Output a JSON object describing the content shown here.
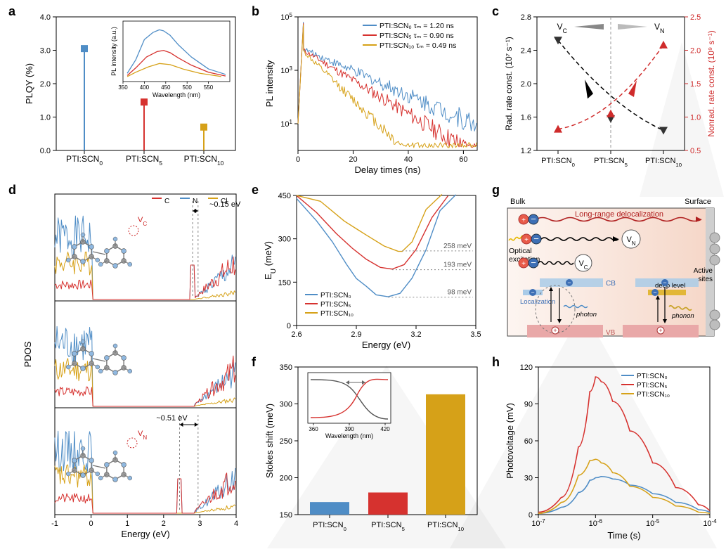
{
  "colors": {
    "scn0": "#4f8dc6",
    "scn5": "#d6322f",
    "scn10": "#d6a118",
    "black": "#000000",
    "red_axis": "#cf2b2b",
    "gray": "#7a7a7a",
    "grid": "#bbbbbb",
    "panel_g_bg_left": "#fdf5f1",
    "panel_g_bg_right": "#f5d6c7",
    "vb_fill": "#e9a8a8",
    "cb_fill": "#a9cbe8",
    "deep_fill": "#e2b738",
    "bulk_text": "#000",
    "delocal": "#b01f1f",
    "panel_g_border": "#333"
  },
  "labels": {
    "samples": [
      "PTI:SCN",
      "PTI:SCN",
      "PTI:SCN"
    ],
    "sample_subs": [
      "0",
      "5",
      "10"
    ],
    "a_ylabel": "PLQY (%)",
    "a_inset_x": "Wavelength (nm)",
    "a_inset_y": "PL intensity (a.u.)",
    "b_ylabel": "PL intensity",
    "b_xlabel": "Delay times (ns)",
    "b_legend": [
      "PTI:SCN₀  τₘ = 1.20 ns",
      "PTI:SCN₅  τₘ = 0.90 ns",
      "PTI:SCN₁₀ τₘ = 0.49 ns"
    ],
    "c_yleft": "Rad. rate const. (10⁷ s⁻¹)",
    "c_yright": "Nonrad. rate const. (10⁹ s⁻¹)",
    "c_vc": "V",
    "c_vc_sub": "C",
    "c_vn": "V",
    "c_vn_sub": "N",
    "d_ylabel": "PDOS",
    "d_xlabel": "Energy (eV)",
    "d_legend": [
      "C",
      "N",
      "Cl"
    ],
    "d_gap1": "~0.15 eV",
    "d_gap3": "~0.51 eV",
    "d_vc": "V",
    "d_vc_sub": "C",
    "d_vn": "V",
    "d_vn_sub": "N",
    "e_ylabel": "E",
    "e_ylabel_sub": "U",
    "e_yunit": " (meV)",
    "e_xlabel": "Energy (eV)",
    "e_annot1": "258 meV",
    "e_annot2": "193 meV",
    "e_annot3": "98 meV",
    "e_legend": [
      "PTI:SCN₀",
      "PTI:SCN₅",
      "PTI:SCN₁₀"
    ],
    "f_ylabel": "Stokes shift (meV)",
    "f_inset_x": "Wavelength (nm)",
    "g_bulk": "Bulk",
    "g_surface": "Surface",
    "g_delocal": "Long-range delocalization",
    "g_optical": "Optical\nexcitation",
    "g_active": "Active\nsites",
    "g_vn": "V",
    "g_vn_sub": "N",
    "g_vc": "V",
    "g_vc_sub": "C",
    "g_cb": "CB",
    "g_vb": "VB",
    "g_local": "Localization",
    "g_deep": "deep level",
    "g_photon": "photon",
    "g_phonon": "phonon",
    "h_ylabel": "Photovoltage (mV)",
    "h_xlabel": "Time (s)",
    "h_legend": [
      "PTI:SCN₀",
      "PTI:SCN₅",
      "PTI:SCN₁₀"
    ]
  },
  "panel_a": {
    "ylim": [
      0.0,
      4.0
    ],
    "ytick_step": 1.0,
    "points": [
      {
        "x": 0,
        "y": 3.05
      },
      {
        "x": 1,
        "y": 1.45
      },
      {
        "x": 2,
        "y": 0.7
      }
    ],
    "fontsize": 13,
    "inset": {
      "xlim": [
        350,
        600
      ],
      "xtick": [
        350,
        400,
        450,
        500,
        550
      ],
      "series": [
        {
          "color_key": "scn0",
          "pts": [
            [
              360,
              10
            ],
            [
              380,
              35
            ],
            [
              400,
              72
            ],
            [
              420,
              85
            ],
            [
              435,
              90
            ],
            [
              445,
              88
            ],
            [
              460,
              80
            ],
            [
              480,
              62
            ],
            [
              510,
              40
            ],
            [
              550,
              18
            ],
            [
              590,
              8
            ]
          ]
        },
        {
          "color_key": "scn5",
          "pts": [
            [
              360,
              6
            ],
            [
              380,
              20
            ],
            [
              405,
              40
            ],
            [
              430,
              50
            ],
            [
              445,
              52
            ],
            [
              460,
              48
            ],
            [
              480,
              38
            ],
            [
              510,
              25
            ],
            [
              550,
              12
            ],
            [
              590,
              5
            ]
          ]
        },
        {
          "color_key": "scn10",
          "pts": [
            [
              360,
              4
            ],
            [
              380,
              12
            ],
            [
              410,
              22
            ],
            [
              435,
              28
            ],
            [
              460,
              26
            ],
            [
              490,
              18
            ],
            [
              530,
              10
            ],
            [
              580,
              4
            ]
          ]
        }
      ]
    }
  },
  "panel_b": {
    "xlim": [
      0,
      65
    ],
    "xtick": [
      0,
      20,
      40,
      60
    ],
    "ylim_exp": [
      0,
      5
    ],
    "yticks_exp": [
      1,
      3,
      5
    ],
    "series": [
      {
        "color_key": "scn0",
        "tau": 1.2
      },
      {
        "color_key": "scn5",
        "tau": 0.9
      },
      {
        "color_key": "scn10",
        "tau": 0.49
      }
    ]
  },
  "panel_c": {
    "yleft_lim": [
      1.2,
      2.8
    ],
    "yleft_tick": 0.4,
    "yright_lim": [
      0.5,
      2.5
    ],
    "yright_tick": 0.5,
    "rad": [
      2.52,
      1.58,
      1.44
    ],
    "nonrad": [
      0.82,
      1.05,
      2.08
    ]
  },
  "panel_d": {
    "xlim": [
      -1,
      4
    ],
    "xtick": [
      -1,
      0,
      1,
      2,
      3,
      4
    ]
  },
  "panel_e": {
    "xlim": [
      2.6,
      3.5
    ],
    "xtick": [
      2.6,
      2.9,
      3.2,
      3.5
    ],
    "ylim": [
      0,
      450
    ],
    "ytick": 150,
    "series": [
      {
        "color_key": "scn0",
        "min_y": 98,
        "pts": [
          [
            2.6,
            440
          ],
          [
            2.7,
            360
          ],
          [
            2.78,
            290
          ],
          [
            2.85,
            215
          ],
          [
            2.9,
            165
          ],
          [
            2.95,
            132
          ],
          [
            3.0,
            108
          ],
          [
            3.06,
            98
          ],
          [
            3.12,
            115
          ],
          [
            3.18,
            160
          ],
          [
            3.25,
            260
          ],
          [
            3.32,
            400
          ],
          [
            3.4,
            520
          ]
        ]
      },
      {
        "color_key": "scn5",
        "min_y": 193,
        "pts": [
          [
            2.6,
            460
          ],
          [
            2.7,
            390
          ],
          [
            2.8,
            320
          ],
          [
            2.88,
            268
          ],
          [
            2.95,
            232
          ],
          [
            3.02,
            205
          ],
          [
            3.08,
            193
          ],
          [
            3.14,
            210
          ],
          [
            3.2,
            260
          ],
          [
            3.28,
            370
          ],
          [
            3.36,
            510
          ]
        ]
      },
      {
        "color_key": "scn10",
        "min_y": 258,
        "pts": [
          [
            2.6,
            500
          ],
          [
            2.72,
            430
          ],
          [
            2.84,
            365
          ],
          [
            2.95,
            312
          ],
          [
            3.04,
            278
          ],
          [
            3.11,
            260
          ],
          [
            3.13,
            258
          ],
          [
            3.18,
            290
          ],
          [
            3.25,
            400
          ],
          [
            3.33,
            560
          ]
        ]
      }
    ]
  },
  "panel_f": {
    "ylim": [
      150,
      350
    ],
    "ytick": [
      150,
      200,
      250,
      300,
      350
    ],
    "bars": [
      167,
      180,
      313
    ],
    "colors": [
      "scn0",
      "scn5",
      "scn10"
    ]
  },
  "panel_h": {
    "xlim_exp": [
      -7,
      -4
    ],
    "ylim": [
      0,
      120
    ],
    "ytick": 30,
    "series": [
      {
        "color_key": "scn0",
        "pts": [
          [
            -7,
            1
          ],
          [
            -6.6,
            6
          ],
          [
            -6.3,
            18
          ],
          [
            -6.1,
            28
          ],
          [
            -6.0,
            30
          ],
          [
            -5.9,
            31
          ],
          [
            -5.7,
            29
          ],
          [
            -5.4,
            24
          ],
          [
            -5.0,
            17
          ],
          [
            -4.6,
            10
          ],
          [
            -4.2,
            4
          ],
          [
            -4.0,
            2
          ]
        ]
      },
      {
        "color_key": "scn5",
        "pts": [
          [
            -7,
            2
          ],
          [
            -6.6,
            14
          ],
          [
            -6.3,
            55
          ],
          [
            -6.1,
            100
          ],
          [
            -6.0,
            112
          ],
          [
            -5.9,
            108
          ],
          [
            -5.7,
            92
          ],
          [
            -5.4,
            68
          ],
          [
            -5.0,
            42
          ],
          [
            -4.6,
            22
          ],
          [
            -4.2,
            8
          ],
          [
            -4.0,
            3
          ]
        ]
      },
      {
        "color_key": "scn10",
        "pts": [
          [
            -7,
            1
          ],
          [
            -6.6,
            10
          ],
          [
            -6.3,
            32
          ],
          [
            -6.1,
            44
          ],
          [
            -6.0,
            45
          ],
          [
            -5.9,
            42
          ],
          [
            -5.7,
            34
          ],
          [
            -5.4,
            23
          ],
          [
            -5.0,
            14
          ],
          [
            -4.6,
            7
          ],
          [
            -4.2,
            2
          ],
          [
            -4.0,
            1
          ]
        ]
      }
    ]
  }
}
